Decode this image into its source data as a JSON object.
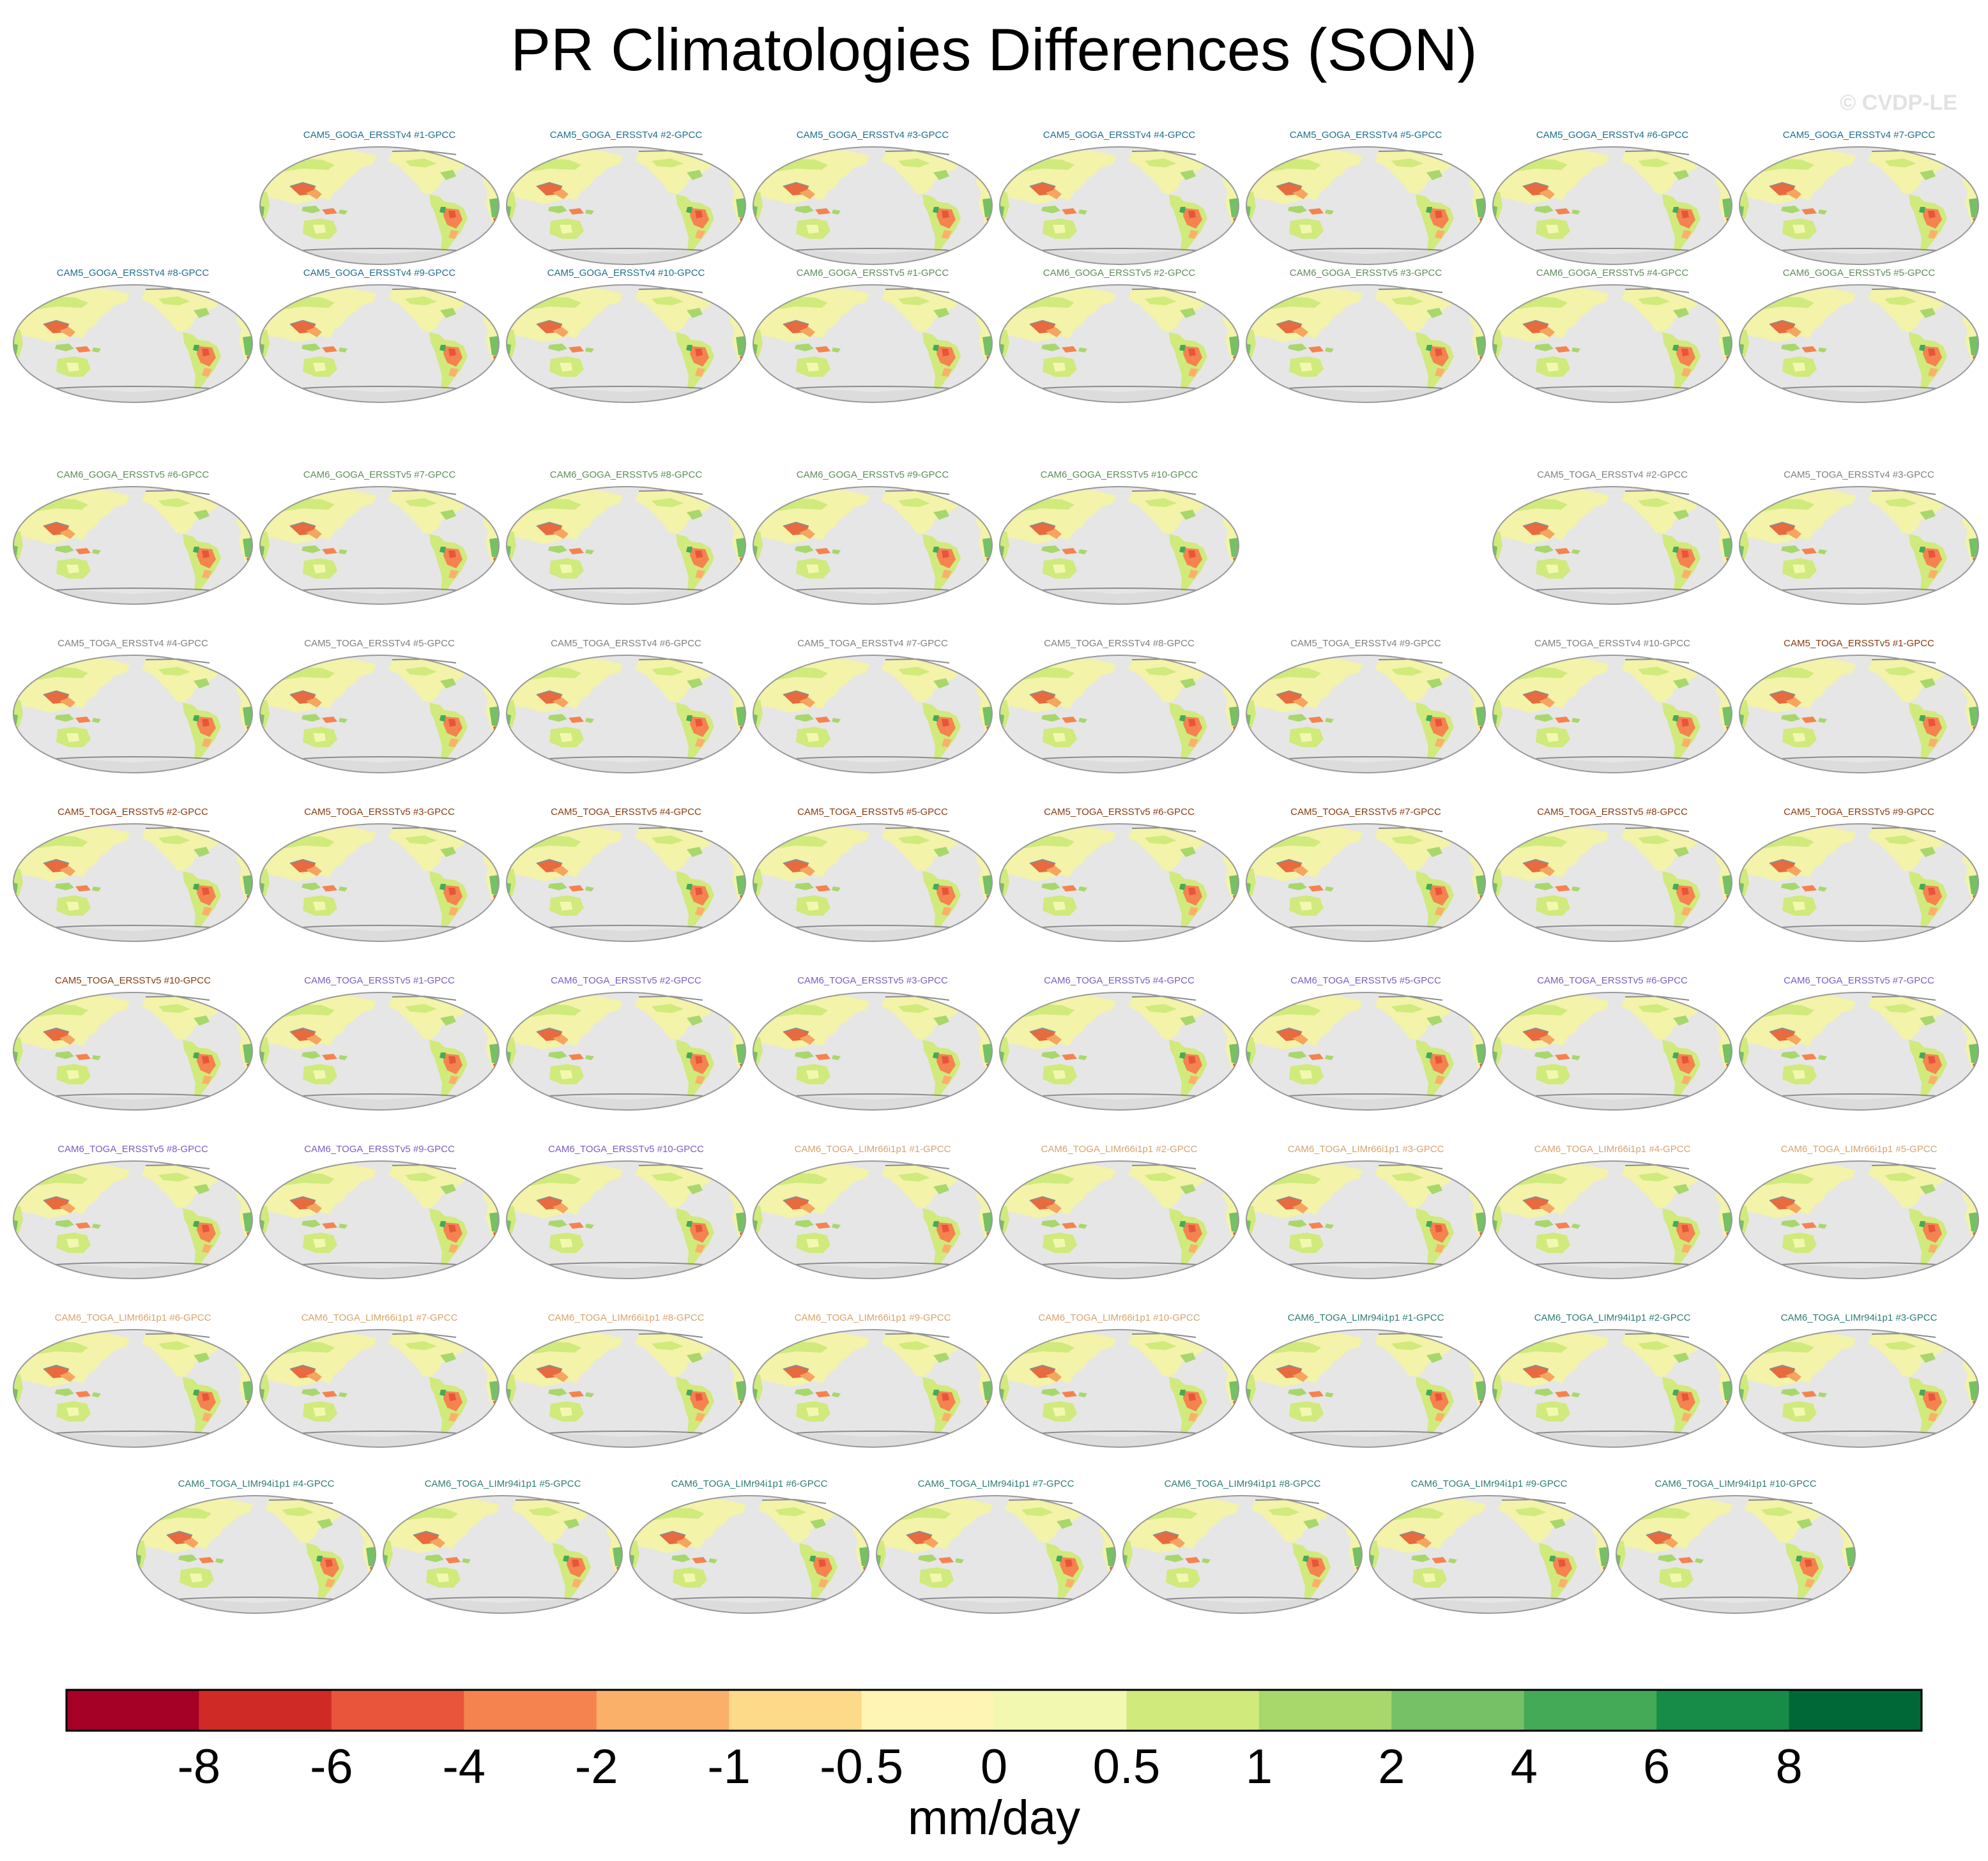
{
  "title": "PR Climatologies Differences (SON)",
  "credit": "© CVDP-LE",
  "chart_data": {
    "type": "map-panel-grid",
    "variable": "PR",
    "season": "SON",
    "colorbar": {
      "label": "mm/day",
      "tick_labels": [
        "-8",
        "-6",
        "-4",
        "-2",
        "-1",
        "-0.5",
        "0",
        "0.5",
        "1",
        "2",
        "4",
        "6",
        "8"
      ],
      "colors": [
        "#a50026",
        "#d02a27",
        "#e8553b",
        "#f5834f",
        "#fbb06a",
        "#fdd98a",
        "#fef4b4",
        "#f2f8b0",
        "#d0ea7c",
        "#a8d76b",
        "#76c065",
        "#44aa58",
        "#168c48",
        "#006837"
      ]
    },
    "group_colors": {
      "CAM5_GOGA_ERSSTv4": "#1f6e8c",
      "CAM6_GOGA_ERSSTv5": "#5e8c5a",
      "CAM5_TOGA_ERSSTv4": "#808080",
      "CAM5_TOGA_ERSSTv5": "#8b3a0f",
      "CAM6_TOGA_ERSSTv5": "#7d5bc6",
      "CAM6_TOGA_LIMr66i1p1": "#d7a46e",
      "CAM6_TOGA_LIMr94i1p1": "#2f7d74"
    },
    "rows": [
      {
        "panels": [
          {
            "label": "CAM5_GOGA_ERSSTv4 #1-GPCC",
            "group": "CAM5_GOGA_ERSSTv4"
          },
          {
            "label": "CAM5_GOGA_ERSSTv4 #2-GPCC",
            "group": "CAM5_GOGA_ERSSTv4"
          },
          {
            "label": "CAM5_GOGA_ERSSTv4 #3-GPCC",
            "group": "CAM5_GOGA_ERSSTv4"
          },
          {
            "label": "CAM5_GOGA_ERSSTv4 #4-GPCC",
            "group": "CAM5_GOGA_ERSSTv4"
          },
          {
            "label": "CAM5_GOGA_ERSSTv4 #5-GPCC",
            "group": "CAM5_GOGA_ERSSTv4"
          },
          {
            "label": "CAM5_GOGA_ERSSTv4 #6-GPCC",
            "group": "CAM5_GOGA_ERSSTv4"
          },
          {
            "label": "CAM5_GOGA_ERSSTv4 #7-GPCC",
            "group": "CAM5_GOGA_ERSSTv4"
          }
        ]
      },
      {
        "panels": [
          {
            "label": "CAM5_GOGA_ERSSTv4 #8-GPCC",
            "group": "CAM5_GOGA_ERSSTv4"
          },
          {
            "label": "CAM5_GOGA_ERSSTv4 #9-GPCC",
            "group": "CAM5_GOGA_ERSSTv4"
          },
          {
            "label": "CAM5_GOGA_ERSSTv4 #10-GPCC",
            "group": "CAM5_GOGA_ERSSTv4"
          },
          {
            "label": "CAM6_GOGA_ERSSTv5 #1-GPCC",
            "group": "CAM6_GOGA_ERSSTv5"
          },
          {
            "label": "CAM6_GOGA_ERSSTv5 #2-GPCC",
            "group": "CAM6_GOGA_ERSSTv5"
          },
          {
            "label": "CAM6_GOGA_ERSSTv5 #3-GPCC",
            "group": "CAM6_GOGA_ERSSTv5"
          },
          {
            "label": "CAM6_GOGA_ERSSTv5 #4-GPCC",
            "group": "CAM6_GOGA_ERSSTv5"
          },
          {
            "label": "CAM6_GOGA_ERSSTv5 #5-GPCC",
            "group": "CAM6_GOGA_ERSSTv5"
          }
        ]
      },
      {
        "panels": [
          {
            "label": "CAM6_GOGA_ERSSTv5 #6-GPCC",
            "group": "CAM6_GOGA_ERSSTv5"
          },
          {
            "label": "CAM6_GOGA_ERSSTv5 #7-GPCC",
            "group": "CAM6_GOGA_ERSSTv5"
          },
          {
            "label": "CAM6_GOGA_ERSSTv5 #8-GPCC",
            "group": "CAM6_GOGA_ERSSTv5"
          },
          {
            "label": "CAM6_GOGA_ERSSTv5 #9-GPCC",
            "group": "CAM6_GOGA_ERSSTv5"
          },
          {
            "label": "CAM6_GOGA_ERSSTv5 #10-GPCC",
            "group": "CAM6_GOGA_ERSSTv5"
          },
          null,
          {
            "label": "CAM5_TOGA_ERSSTv4 #2-GPCC",
            "group": "CAM5_TOGA_ERSSTv4"
          },
          {
            "label": "CAM5_TOGA_ERSSTv4 #3-GPCC",
            "group": "CAM5_TOGA_ERSSTv4"
          }
        ]
      },
      {
        "panels": [
          {
            "label": "CAM5_TOGA_ERSSTv4 #4-GPCC",
            "group": "CAM5_TOGA_ERSSTv4"
          },
          {
            "label": "CAM5_TOGA_ERSSTv4 #5-GPCC",
            "group": "CAM5_TOGA_ERSSTv4"
          },
          {
            "label": "CAM5_TOGA_ERSSTv4 #6-GPCC",
            "group": "CAM5_TOGA_ERSSTv4"
          },
          {
            "label": "CAM5_TOGA_ERSSTv4 #7-GPCC",
            "group": "CAM5_TOGA_ERSSTv4"
          },
          {
            "label": "CAM5_TOGA_ERSSTv4 #8-GPCC",
            "group": "CAM5_TOGA_ERSSTv4"
          },
          {
            "label": "CAM5_TOGA_ERSSTv4 #9-GPCC",
            "group": "CAM5_TOGA_ERSSTv4"
          },
          {
            "label": "CAM5_TOGA_ERSSTv4 #10-GPCC",
            "group": "CAM5_TOGA_ERSSTv4"
          },
          {
            "label": "CAM5_TOGA_ERSSTv5 #1-GPCC",
            "group": "CAM5_TOGA_ERSSTv5"
          }
        ]
      },
      {
        "panels": [
          {
            "label": "CAM5_TOGA_ERSSTv5 #2-GPCC",
            "group": "CAM5_TOGA_ERSSTv5"
          },
          {
            "label": "CAM5_TOGA_ERSSTv5 #3-GPCC",
            "group": "CAM5_TOGA_ERSSTv5"
          },
          {
            "label": "CAM5_TOGA_ERSSTv5 #4-GPCC",
            "group": "CAM5_TOGA_ERSSTv5"
          },
          {
            "label": "CAM5_TOGA_ERSSTv5 #5-GPCC",
            "group": "CAM5_TOGA_ERSSTv5"
          },
          {
            "label": "CAM5_TOGA_ERSSTv5 #6-GPCC",
            "group": "CAM5_TOGA_ERSSTv5"
          },
          {
            "label": "CAM5_TOGA_ERSSTv5 #7-GPCC",
            "group": "CAM5_TOGA_ERSSTv5"
          },
          {
            "label": "CAM5_TOGA_ERSSTv5 #8-GPCC",
            "group": "CAM5_TOGA_ERSSTv5"
          },
          {
            "label": "CAM5_TOGA_ERSSTv5 #9-GPCC",
            "group": "CAM5_TOGA_ERSSTv5"
          }
        ]
      },
      {
        "panels": [
          {
            "label": "CAM5_TOGA_ERSSTv5 #10-GPCC",
            "group": "CAM5_TOGA_ERSSTv5"
          },
          {
            "label": "CAM6_TOGA_ERSSTv5 #1-GPCC",
            "group": "CAM6_TOGA_ERSSTv5"
          },
          {
            "label": "CAM6_TOGA_ERSSTv5 #2-GPCC",
            "group": "CAM6_TOGA_ERSSTv5"
          },
          {
            "label": "CAM6_TOGA_ERSSTv5 #3-GPCC",
            "group": "CAM6_TOGA_ERSSTv5"
          },
          {
            "label": "CAM6_TOGA_ERSSTv5 #4-GPCC",
            "group": "CAM6_TOGA_ERSSTv5"
          },
          {
            "label": "CAM6_TOGA_ERSSTv5 #5-GPCC",
            "group": "CAM6_TOGA_ERSSTv5"
          },
          {
            "label": "CAM6_TOGA_ERSSTv5 #6-GPCC",
            "group": "CAM6_TOGA_ERSSTv5"
          },
          {
            "label": "CAM6_TOGA_ERSSTv5 #7-GPCC",
            "group": "CAM6_TOGA_ERSSTv5"
          }
        ]
      },
      {
        "panels": [
          {
            "label": "CAM6_TOGA_ERSSTv5 #8-GPCC",
            "group": "CAM6_TOGA_ERSSTv5"
          },
          {
            "label": "CAM6_TOGA_ERSSTv5 #9-GPCC",
            "group": "CAM6_TOGA_ERSSTv5"
          },
          {
            "label": "CAM6_TOGA_ERSSTv5 #10-GPCC",
            "group": "CAM6_TOGA_ERSSTv5"
          },
          {
            "label": "CAM6_TOGA_LIMr66i1p1 #1-GPCC",
            "group": "CAM6_TOGA_LIMr66i1p1"
          },
          {
            "label": "CAM6_TOGA_LIMr66i1p1 #2-GPCC",
            "group": "CAM6_TOGA_LIMr66i1p1"
          },
          {
            "label": "CAM6_TOGA_LIMr66i1p1 #3-GPCC",
            "group": "CAM6_TOGA_LIMr66i1p1"
          },
          {
            "label": "CAM6_TOGA_LIMr66i1p1 #4-GPCC",
            "group": "CAM6_TOGA_LIMr66i1p1"
          },
          {
            "label": "CAM6_TOGA_LIMr66i1p1 #5-GPCC",
            "group": "CAM6_TOGA_LIMr66i1p1"
          }
        ]
      },
      {
        "panels": [
          {
            "label": "CAM6_TOGA_LIMr66i1p1 #6-GPCC",
            "group": "CAM6_TOGA_LIMr66i1p1"
          },
          {
            "label": "CAM6_TOGA_LIMr66i1p1 #7-GPCC",
            "group": "CAM6_TOGA_LIMr66i1p1"
          },
          {
            "label": "CAM6_TOGA_LIMr66i1p1 #8-GPCC",
            "group": "CAM6_TOGA_LIMr66i1p1"
          },
          {
            "label": "CAM6_TOGA_LIMr66i1p1 #9-GPCC",
            "group": "CAM6_TOGA_LIMr66i1p1"
          },
          {
            "label": "CAM6_TOGA_LIMr66i1p1 #10-GPCC",
            "group": "CAM6_TOGA_LIMr66i1p1"
          },
          {
            "label": "CAM6_TOGA_LIMr94i1p1 #1-GPCC",
            "group": "CAM6_TOGA_LIMr94i1p1"
          },
          {
            "label": "CAM6_TOGA_LIMr94i1p1 #2-GPCC",
            "group": "CAM6_TOGA_LIMr94i1p1"
          },
          {
            "label": "CAM6_TOGA_LIMr94i1p1 #3-GPCC",
            "group": "CAM6_TOGA_LIMr94i1p1"
          }
        ]
      },
      {
        "panels": [
          {
            "label": "CAM6_TOGA_LIMr94i1p1 #4-GPCC",
            "group": "CAM6_TOGA_LIMr94i1p1"
          },
          {
            "label": "CAM6_TOGA_LIMr94i1p1 #5-GPCC",
            "group": "CAM6_TOGA_LIMr94i1p1"
          },
          {
            "label": "CAM6_TOGA_LIMr94i1p1 #6-GPCC",
            "group": "CAM6_TOGA_LIMr94i1p1"
          },
          {
            "label": "CAM6_TOGA_LIMr94i1p1 #7-GPCC",
            "group": "CAM6_TOGA_LIMr94i1p1"
          },
          {
            "label": "CAM6_TOGA_LIMr94i1p1 #8-GPCC",
            "group": "CAM6_TOGA_LIMr94i1p1"
          },
          {
            "label": "CAM6_TOGA_LIMr94i1p1 #9-GPCC",
            "group": "CAM6_TOGA_LIMr94i1p1"
          },
          {
            "label": "CAM6_TOGA_LIMr94i1p1 #10-GPCC",
            "group": "CAM6_TOGA_LIMr94i1p1"
          }
        ]
      }
    ]
  }
}
